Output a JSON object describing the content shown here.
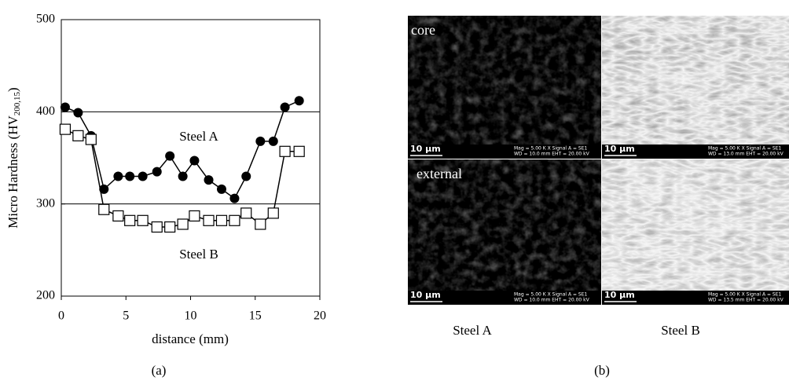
{
  "chart_data": {
    "type": "line",
    "panel_label": "(a)",
    "xlabel": "distance (mm)",
    "ylabel": [
      "Micro Hardness (HV",
      "200,15",
      ")"
    ],
    "xlim": [
      0,
      20
    ],
    "xticks": [
      0,
      5,
      10,
      15,
      20
    ],
    "ylim": [
      200,
      500
    ],
    "yticks": [
      200,
      300,
      400,
      500
    ],
    "grid": true,
    "series": [
      {
        "name": "Steel A",
        "color": "#000",
        "marker": "circle",
        "x": [
          0.3,
          1.3,
          2.3,
          3.3,
          4.4,
          5.3,
          6.3,
          7.4,
          8.4,
          9.4,
          10.3,
          11.4,
          12.4,
          13.4,
          14.3,
          15.4,
          16.4,
          17.3,
          18.4
        ],
        "values": [
          405,
          399,
          374,
          316,
          330,
          330,
          330,
          335,
          352,
          330,
          347,
          326,
          316,
          306,
          330,
          368,
          368,
          405,
          412
        ]
      },
      {
        "name": "Steel B",
        "color": "#000",
        "marker": "square",
        "x": [
          0.3,
          1.3,
          2.3,
          3.3,
          4.4,
          5.3,
          6.3,
          7.4,
          8.4,
          9.4,
          10.3,
          11.4,
          12.4,
          13.4,
          14.3,
          15.4,
          16.4,
          17.3,
          18.4
        ],
        "values": [
          381,
          374,
          370,
          294,
          287,
          282,
          282,
          275,
          275,
          278,
          287,
          282,
          282,
          282,
          290,
          278,
          290,
          357,
          357
        ]
      }
    ]
  },
  "panel_b": {
    "panel_label": "(b)",
    "row_labels": [
      "core",
      "external"
    ],
    "column_labels": [
      "Steel A",
      "Steel B"
    ],
    "images": [
      {
        "scale": "10 µm",
        "info": [
          "Mag =  5.00 K X    Signal A = SE1",
          "WD = 10.0 mm    EHT = 20.00 kV"
        ]
      },
      {
        "scale": "10 µm",
        "info": [
          "Mag =  5.00 K X    Signal A = SE1",
          "WD = 13.0 mm    EHT = 20.00 kV"
        ]
      },
      {
        "scale": "10 µm",
        "info": [
          "Mag =  5.00 K X    Signal A = SE1",
          "WD = 10.0 mm    EHT = 20.00 kV"
        ]
      },
      {
        "scale": "10 µm",
        "info": [
          "Mag =  5.00 K X    Signal A = SE1",
          "WD = 13.5 mm    EHT = 20.00 kV"
        ]
      }
    ]
  }
}
